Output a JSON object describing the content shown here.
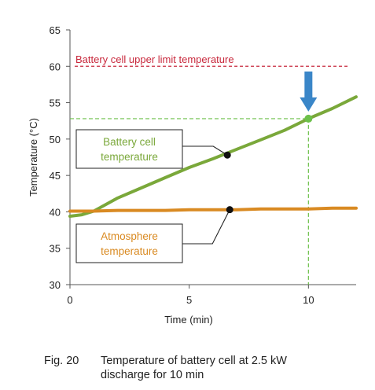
{
  "chart_data": {
    "type": "line",
    "xlabel": "Time (min)",
    "ylabel": "Temperature (°C)",
    "xlim": [
      0,
      12
    ],
    "ylim": [
      30,
      65
    ],
    "xticks": [
      0,
      5,
      10
    ],
    "yticks": [
      30,
      35,
      40,
      45,
      50,
      55,
      60,
      65
    ],
    "grid": false,
    "series": [
      {
        "label": "Battery cell temperature",
        "color": "#7aa83a",
        "x": [
          0,
          0.5,
          1,
          2,
          3,
          4,
          5,
          6,
          7,
          8,
          9,
          10,
          11,
          12
        ],
        "y": [
          39.4,
          39.6,
          40.1,
          41.9,
          43.3,
          44.7,
          46.1,
          47.3,
          48.6,
          49.9,
          51.2,
          52.8,
          54.2,
          55.8
        ]
      },
      {
        "label": "Atmosphere temperature",
        "color": "#d98a22",
        "x": [
          0,
          1,
          2,
          3,
          4,
          5,
          6,
          7,
          8,
          9,
          10,
          11,
          12
        ],
        "y": [
          40.1,
          40.1,
          40.2,
          40.2,
          40.2,
          40.3,
          40.3,
          40.3,
          40.4,
          40.4,
          40.4,
          40.5,
          40.5
        ]
      }
    ],
    "upper_limit": {
      "label": "Battery cell upper limit temperature",
      "value": 60,
      "color": "#c8283c"
    },
    "marker_10min": {
      "x": 10,
      "y": 52.8,
      "color": "#6cc04a",
      "arrow_color": "#3a86c8"
    },
    "annotations": [
      {
        "text_line1": "Battery cell",
        "text_line2": "temperature",
        "point_x": 6.6,
        "point_y": 47.8,
        "color": "#7aa83a"
      },
      {
        "text_line1": "Atmosphere",
        "text_line2": "temperature",
        "point_x": 6.7,
        "point_y": 40.3,
        "color": "#d98a22"
      }
    ]
  },
  "caption": {
    "number": "Fig. 20",
    "line1": "Temperature of battery cell at 2.5 kW",
    "line2": "discharge for 10 min"
  }
}
